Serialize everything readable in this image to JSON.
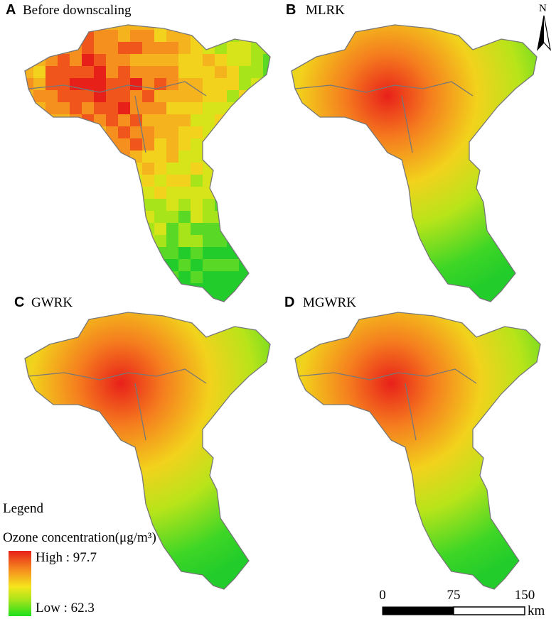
{
  "panels": [
    {
      "letter": "A",
      "title": "Before downscaling"
    },
    {
      "letter": "B",
      "title": "MLRK"
    },
    {
      "letter": "C",
      "title": "GWRK"
    },
    {
      "letter": "D",
      "title": "MGWRK"
    }
  ],
  "north": "N",
  "legend": {
    "heading": "Legend",
    "title": "Ozone concentration(μg/m³)",
    "high": "High : 97.7",
    "low": "Low : 62.3"
  },
  "scale_bar": {
    "labels": [
      "0",
      "75",
      "150"
    ],
    "unit": "km"
  }
}
